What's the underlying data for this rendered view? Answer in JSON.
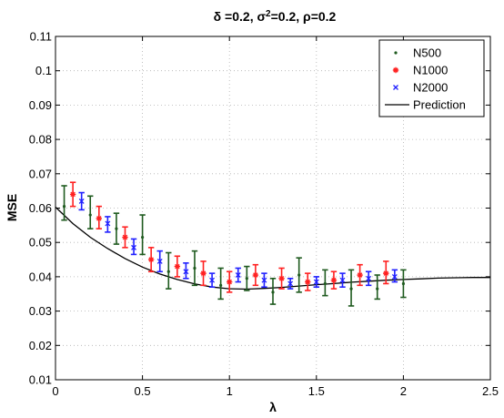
{
  "chart_data": {
    "type": "scatter",
    "title": "δ =0.2,  σ²=0.2,  ρ=0.2",
    "title_parts": {
      "p1": "δ =0.2,  σ",
      "sup": "2",
      "p2": "=0.2,  ρ=0.2"
    },
    "xlabel": "λ",
    "ylabel": "MSE",
    "xlim": [
      0,
      2.5
    ],
    "ylim": [
      0.01,
      0.11
    ],
    "xticks": [
      0,
      0.5,
      1,
      1.5,
      2,
      2.5
    ],
    "xtick_labels": [
      "0",
      "0.5",
      "1",
      "1.5",
      "2",
      "2.5"
    ],
    "yticks": [
      0.01,
      0.02,
      0.03,
      0.04,
      0.05,
      0.06,
      0.07,
      0.08,
      0.09,
      0.1,
      0.11
    ],
    "ytick_labels": [
      "0.01",
      "0.02",
      "0.03",
      "0.04",
      "0.05",
      "0.06",
      "0.07",
      "0.08",
      "0.09",
      "0.1",
      "0.11"
    ],
    "grid": true,
    "legend_position": "top-right",
    "series": [
      {
        "name": "N500",
        "marker": "dot",
        "color": "#1e5a1e",
        "points": [
          {
            "x": 0.05,
            "y": 0.0605,
            "lo": 0.0565,
            "hi": 0.0665
          },
          {
            "x": 0.2,
            "y": 0.058,
            "lo": 0.054,
            "hi": 0.0635
          },
          {
            "x": 0.35,
            "y": 0.054,
            "lo": 0.0495,
            "hi": 0.0585
          },
          {
            "x": 0.5,
            "y": 0.0515,
            "lo": 0.0465,
            "hi": 0.058
          },
          {
            "x": 0.65,
            "y": 0.0415,
            "lo": 0.0365,
            "hi": 0.047
          },
          {
            "x": 0.8,
            "y": 0.0425,
            "lo": 0.0375,
            "hi": 0.0475
          },
          {
            "x": 0.95,
            "y": 0.0375,
            "lo": 0.0335,
            "hi": 0.0425
          },
          {
            "x": 1.1,
            "y": 0.0395,
            "lo": 0.036,
            "hi": 0.043
          },
          {
            "x": 1.25,
            "y": 0.0355,
            "lo": 0.032,
            "hi": 0.0395
          },
          {
            "x": 1.4,
            "y": 0.0405,
            "lo": 0.0355,
            "hi": 0.0455
          },
          {
            "x": 1.55,
            "y": 0.038,
            "lo": 0.0345,
            "hi": 0.042
          },
          {
            "x": 1.7,
            "y": 0.0365,
            "lo": 0.0315,
            "hi": 0.042
          },
          {
            "x": 1.85,
            "y": 0.0365,
            "lo": 0.0335,
            "hi": 0.0405
          },
          {
            "x": 2.0,
            "y": 0.038,
            "lo": 0.034,
            "hi": 0.042
          }
        ]
      },
      {
        "name": "N1000",
        "marker": "star",
        "color": "#ff2020",
        "points": [
          {
            "x": 0.1,
            "y": 0.064,
            "lo": 0.0605,
            "hi": 0.0675
          },
          {
            "x": 0.25,
            "y": 0.057,
            "lo": 0.054,
            "hi": 0.0605
          },
          {
            "x": 0.4,
            "y": 0.0515,
            "lo": 0.0485,
            "hi": 0.0545
          },
          {
            "x": 0.55,
            "y": 0.045,
            "lo": 0.0415,
            "hi": 0.0485
          },
          {
            "x": 0.7,
            "y": 0.043,
            "lo": 0.04,
            "hi": 0.046
          },
          {
            "x": 0.85,
            "y": 0.041,
            "lo": 0.0375,
            "hi": 0.0445
          },
          {
            "x": 1.0,
            "y": 0.0385,
            "lo": 0.0355,
            "hi": 0.0415
          },
          {
            "x": 1.15,
            "y": 0.0405,
            "lo": 0.0375,
            "hi": 0.0435
          },
          {
            "x": 1.3,
            "y": 0.0395,
            "lo": 0.0365,
            "hi": 0.0425
          },
          {
            "x": 1.45,
            "y": 0.0385,
            "lo": 0.036,
            "hi": 0.041
          },
          {
            "x": 1.6,
            "y": 0.039,
            "lo": 0.0365,
            "hi": 0.0415
          },
          {
            "x": 1.75,
            "y": 0.0405,
            "lo": 0.0375,
            "hi": 0.0435
          },
          {
            "x": 1.9,
            "y": 0.041,
            "lo": 0.038,
            "hi": 0.0445
          }
        ]
      },
      {
        "name": "N2000",
        "marker": "x",
        "color": "#2020ff",
        "points": [
          {
            "x": 0.15,
            "y": 0.062,
            "lo": 0.0595,
            "hi": 0.0645
          },
          {
            "x": 0.3,
            "y": 0.0555,
            "lo": 0.053,
            "hi": 0.0575
          },
          {
            "x": 0.45,
            "y": 0.0485,
            "lo": 0.0465,
            "hi": 0.051
          },
          {
            "x": 0.6,
            "y": 0.0445,
            "lo": 0.0415,
            "hi": 0.0475
          },
          {
            "x": 0.75,
            "y": 0.0415,
            "lo": 0.0395,
            "hi": 0.044
          },
          {
            "x": 0.9,
            "y": 0.039,
            "lo": 0.037,
            "hi": 0.041
          },
          {
            "x": 1.05,
            "y": 0.0405,
            "lo": 0.0385,
            "hi": 0.0425
          },
          {
            "x": 1.2,
            "y": 0.039,
            "lo": 0.037,
            "hi": 0.041
          },
          {
            "x": 1.35,
            "y": 0.038,
            "lo": 0.0365,
            "hi": 0.0395
          },
          {
            "x": 1.5,
            "y": 0.0385,
            "lo": 0.037,
            "hi": 0.04
          },
          {
            "x": 1.65,
            "y": 0.039,
            "lo": 0.037,
            "hi": 0.041
          },
          {
            "x": 1.8,
            "y": 0.0395,
            "lo": 0.0375,
            "hi": 0.0415
          },
          {
            "x": 1.95,
            "y": 0.04,
            "lo": 0.0385,
            "hi": 0.042
          }
        ]
      },
      {
        "name": "Prediction",
        "marker": "line",
        "color": "#000000",
        "x": [
          0,
          0.1,
          0.2,
          0.3,
          0.4,
          0.5,
          0.6,
          0.7,
          0.8,
          0.9,
          1.0,
          1.1,
          1.2,
          1.3,
          1.4,
          1.5,
          1.6,
          1.7,
          1.8,
          1.9,
          2.0,
          2.1,
          2.2,
          2.3,
          2.4,
          2.5
        ],
        "y": [
          0.0603,
          0.0555,
          0.0515,
          0.0482,
          0.0453,
          0.0428,
          0.0408,
          0.0392,
          0.0379,
          0.037,
          0.0365,
          0.0364,
          0.0366,
          0.0369,
          0.0373,
          0.0377,
          0.038,
          0.0384,
          0.0387,
          0.039,
          0.0392,
          0.0394,
          0.0396,
          0.0397,
          0.0398,
          0.0398
        ]
      }
    ]
  }
}
